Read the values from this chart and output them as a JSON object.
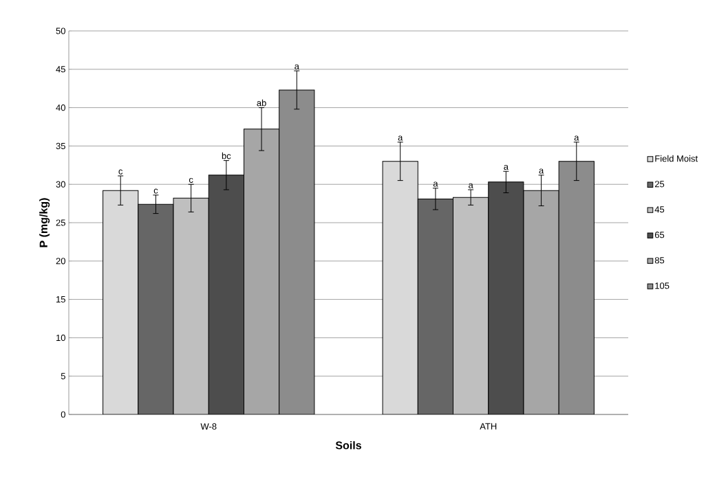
{
  "chart_data": {
    "type": "bar",
    "xlabel": "Soils",
    "ylabel": "P (mg/kg)",
    "categories": [
      "W-8",
      "ATH"
    ],
    "series": [
      {
        "name": "Field Moist",
        "color": "#d9d9d9",
        "values": [
          29.2,
          33.0
        ],
        "errors": [
          1.9,
          2.5
        ],
        "value_labels": [
          "c",
          "a"
        ]
      },
      {
        "name": "25",
        "color": "#666666",
        "values": [
          27.4,
          28.1
        ],
        "errors": [
          1.2,
          1.4
        ],
        "value_labels": [
          "c",
          "a"
        ]
      },
      {
        "name": "45",
        "color": "#bfbfbf",
        "values": [
          28.2,
          28.3
        ],
        "errors": [
          1.8,
          1.0
        ],
        "value_labels": [
          "c",
          "a"
        ]
      },
      {
        "name": "65",
        "color": "#4d4d4d",
        "values": [
          31.2,
          30.3
        ],
        "errors": [
          1.9,
          1.4
        ],
        "value_labels": [
          "bc",
          "a"
        ]
      },
      {
        "name": "85",
        "color": "#a6a6a6",
        "values": [
          37.2,
          29.2
        ],
        "errors": [
          2.8,
          2.0
        ],
        "value_labels": [
          "ab",
          "a"
        ]
      },
      {
        "name": "105",
        "color": "#8c8c8c",
        "values": [
          42.3,
          33.0
        ],
        "errors": [
          2.5,
          2.5
        ],
        "value_labels": [
          "a",
          "a"
        ]
      }
    ],
    "ylim": [
      0,
      50
    ],
    "yticks": [
      0,
      5,
      10,
      15,
      20,
      25,
      30,
      35,
      40,
      45,
      50
    ],
    "grid": "y",
    "legend": "right"
  }
}
